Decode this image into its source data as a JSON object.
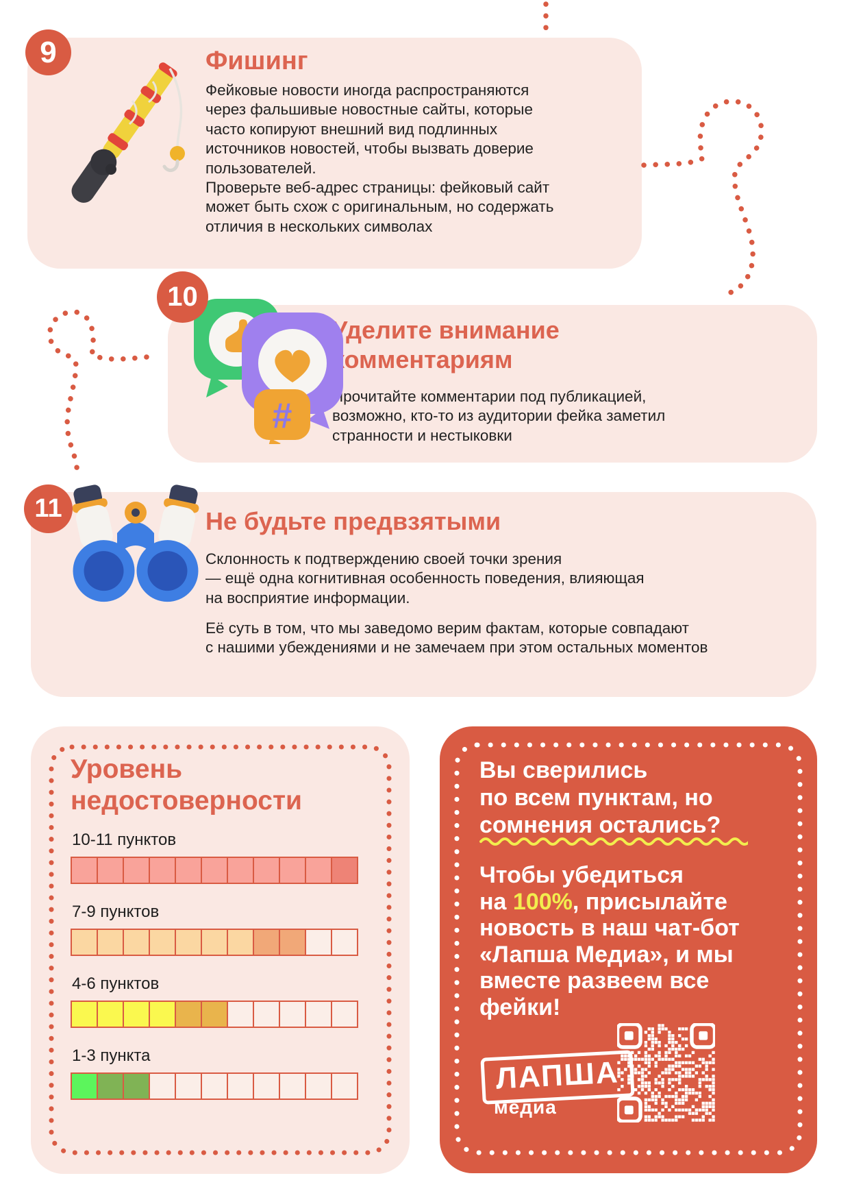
{
  "colors": {
    "accent": "#DB5F49",
    "card_bg": "#FAE8E3",
    "cta_bg": "#D95B43",
    "text": "#222222",
    "highlight_yellow": "#F2ED4E"
  },
  "sections": [
    {
      "number": "9",
      "title": "Фишинг",
      "icon": "fishing-rod",
      "paragraph1_lines": [
        "Фейковые новости иногда распространяются",
        "через фальшивые новостные сайты, которые",
        "часто копируют внешний вид подлинных",
        "источников новостей, чтобы вызвать доверие",
        "пользователей."
      ],
      "paragraph2_lines": [
        "Проверьте веб-адрес страницы: фейковый сайт",
        "может быть схож с оригинальным, но содержать",
        "отличия в нескольких символах"
      ]
    },
    {
      "number": "10",
      "title_lines": [
        "Уделите внимание",
        "комментариям"
      ],
      "icon": "speech-bubbles",
      "body_lines": [
        "Прочитайте комментарии под публикацией,",
        "возможно, кто-то из аудитории фейка заметил",
        "странности и нестыковки"
      ]
    },
    {
      "number": "11",
      "title": "Не будьте предвзятыми",
      "icon": "binoculars",
      "paragraph1_lines": [
        "Склонность к подтверждению своей точки зрения",
        "— ещё одна когнитивная особенность поведения, влияющая",
        "на восприятие информации."
      ],
      "paragraph2_lines": [
        "Её суть в том, что мы заведомо верим фактам, которые совпадают",
        "с нашими убеждениями и не замечаем при этом остальных моментов"
      ]
    }
  ],
  "level_box": {
    "title_lines": [
      "Уровень",
      "недостоверности"
    ],
    "cell_colors": {
      "pink": "#F9A39A",
      "pink_dark": "#EE8376",
      "peach": "#FBD7A2",
      "orange": "#F1A878",
      "yellow": "#FAF84F",
      "mustard": "#E9B44C",
      "green": "#5CF55C",
      "olive": "#80B355",
      "empty": "#FBEEE8"
    },
    "rows": [
      {
        "label": "10-11 пунктов",
        "cells": [
          "pink",
          "pink",
          "pink",
          "pink",
          "pink",
          "pink",
          "pink",
          "pink",
          "pink",
          "pink",
          "pink_dark"
        ]
      },
      {
        "label": "7-9 пунктов",
        "cells": [
          "peach",
          "peach",
          "peach",
          "peach",
          "peach",
          "peach",
          "peach",
          "orange",
          "orange",
          "empty",
          "empty"
        ]
      },
      {
        "label": "4-6 пунктов",
        "cells": [
          "yellow",
          "yellow",
          "yellow",
          "yellow",
          "mustard",
          "mustard",
          "empty",
          "empty",
          "empty",
          "empty",
          "empty"
        ]
      },
      {
        "label": "1-3 пункта",
        "cells": [
          "green",
          "olive",
          "olive",
          "empty",
          "empty",
          "empty",
          "empty",
          "empty",
          "empty",
          "empty",
          "empty"
        ]
      }
    ]
  },
  "cta": {
    "headline_lines": [
      "Вы сверились",
      "по всем пунктам, но",
      "сомнения остались?"
    ],
    "body_segments": [
      {
        "text": "Чтобы убедиться\nна ",
        "highlight": false
      },
      {
        "text": "100%",
        "highlight": true
      },
      {
        "text": ", присылайте\nновость в наш чат-бот\n«Лапша Медиа», и мы\nвместе развеем все\nфейки!",
        "highlight": false
      }
    ],
    "logo": {
      "title": "ЛАПША",
      "subtitle": "медиа"
    },
    "qr_label": "qr-code"
  }
}
